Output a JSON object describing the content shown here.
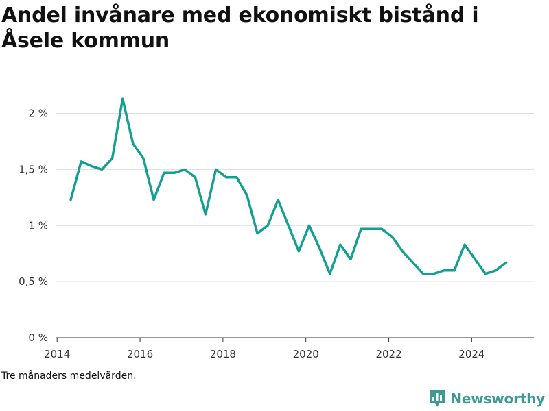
{
  "title": "Andel invånare med ekonomiskt bistånd i Åsele kommun",
  "caption": "Tre månaders medelvärden.",
  "brand": {
    "name": "Newsworthy",
    "color": "#3f9a95",
    "icon": "bar-chart-badge-icon"
  },
  "chart_data": {
    "type": "line",
    "title": "Andel invånare med ekonomiskt bistånd i Åsele kommun",
    "xlabel": "",
    "ylabel": "",
    "ylim": [
      0,
      2.4
    ],
    "xlim": [
      2013.98,
      2025.5
    ],
    "yticks": [
      {
        "value": 0,
        "label": "0 %"
      },
      {
        "value": 0.5,
        "label": "0,5 %"
      },
      {
        "value": 1,
        "label": "1 %"
      },
      {
        "value": 1.5,
        "label": "1,5 %"
      },
      {
        "value": 2,
        "label": "2 %"
      }
    ],
    "xticks": [
      {
        "value": 2014,
        "label": "2014"
      },
      {
        "value": 2016,
        "label": "2016"
      },
      {
        "value": 2018,
        "label": "2018"
      },
      {
        "value": 2020,
        "label": "2020"
      },
      {
        "value": 2022,
        "label": "2022"
      },
      {
        "value": 2024,
        "label": "2024"
      }
    ],
    "grid": true,
    "color": "#14a090",
    "series": [
      {
        "x": [
          2014.33,
          2014.58,
          2014.83,
          2015.08,
          2015.33,
          2015.58,
          2015.83,
          2016.08,
          2016.33,
          2016.58,
          2016.83,
          2017.08,
          2017.33,
          2017.58,
          2017.83,
          2018.08,
          2018.33,
          2018.58,
          2018.83,
          2019.08,
          2019.33,
          2019.58,
          2019.83,
          2020.08,
          2020.33,
          2020.58,
          2020.83,
          2021.08,
          2021.33,
          2021.58,
          2021.83,
          2022.08,
          2022.33,
          2022.58,
          2022.83,
          2023.08,
          2023.33,
          2023.58,
          2023.83,
          2024.08,
          2024.33,
          2024.58,
          2024.83
        ],
        "y": [
          1.23,
          1.57,
          1.53,
          1.5,
          1.6,
          2.13,
          1.73,
          1.6,
          1.23,
          1.47,
          1.47,
          1.5,
          1.43,
          1.1,
          1.5,
          1.43,
          1.43,
          1.27,
          0.93,
          1.0,
          1.23,
          1.0,
          0.77,
          1.0,
          0.8,
          0.57,
          0.83,
          0.7,
          0.97,
          0.97,
          0.97,
          0.9,
          0.77,
          0.67,
          0.57,
          0.57,
          0.6,
          0.6,
          0.83,
          0.7,
          0.57,
          0.6,
          0.67
        ]
      }
    ]
  }
}
